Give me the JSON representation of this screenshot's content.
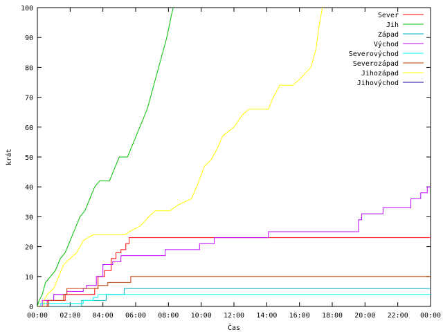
{
  "chart_data": {
    "type": "line",
    "title": "",
    "xlabel": "Čas",
    "ylabel": "krát",
    "x_unit": "hours",
    "xlim": [
      0,
      24
    ],
    "ylim": [
      0,
      100
    ],
    "x_tick_values": [
      0,
      2,
      4,
      6,
      8,
      10,
      12,
      14,
      16,
      18,
      20,
      22,
      24
    ],
    "x_tick_labels": [
      "00:00",
      "02:00",
      "04:00",
      "06:00",
      "08:00",
      "10:00",
      "12:00",
      "14:00",
      "16:00",
      "18:00",
      "20:00",
      "22:00",
      "00:00"
    ],
    "y_tick_values": [
      0,
      10,
      20,
      30,
      40,
      50,
      60,
      70,
      80,
      90,
      100
    ],
    "y_tick_labels": [
      "0",
      "10",
      "20",
      "30",
      "40",
      "50",
      "60",
      "70",
      "80",
      "90",
      "100"
    ],
    "grid": false,
    "legend_position": "top-right",
    "series": [
      {
        "name": "Sever",
        "color": "#ff0000",
        "points": [
          [
            0.6,
            0
          ],
          [
            0.6,
            2
          ],
          [
            1.7,
            2
          ],
          [
            1.7,
            4
          ],
          [
            3.5,
            4
          ],
          [
            3.5,
            6
          ],
          [
            3.7,
            6
          ],
          [
            3.7,
            10
          ],
          [
            4.1,
            10
          ],
          [
            4.1,
            12
          ],
          [
            4.5,
            12
          ],
          [
            4.5,
            16
          ],
          [
            4.8,
            16
          ],
          [
            4.8,
            18
          ],
          [
            5.1,
            18
          ],
          [
            5.1,
            19
          ],
          [
            5.4,
            19
          ],
          [
            5.4,
            21
          ],
          [
            5.6,
            21
          ],
          [
            5.6,
            23
          ],
          [
            24,
            23
          ]
        ]
      },
      {
        "name": "Jih",
        "color": "#00c000",
        "points": [
          [
            0,
            0
          ],
          [
            0.1,
            2
          ],
          [
            0.3,
            4
          ],
          [
            0.5,
            8
          ],
          [
            0.8,
            10
          ],
          [
            1.1,
            12
          ],
          [
            1.4,
            16
          ],
          [
            1.7,
            18
          ],
          [
            2,
            22
          ],
          [
            2.3,
            26
          ],
          [
            2.6,
            30
          ],
          [
            2.9,
            32
          ],
          [
            3.2,
            36
          ],
          [
            3.5,
            40
          ],
          [
            3.8,
            42
          ],
          [
            4.4,
            42
          ],
          [
            4.7,
            46
          ],
          [
            5,
            50
          ],
          [
            5.5,
            50
          ],
          [
            5.8,
            54
          ],
          [
            6.1,
            58
          ],
          [
            6.4,
            62
          ],
          [
            6.7,
            66
          ],
          [
            7,
            72
          ],
          [
            7.3,
            78
          ],
          [
            7.6,
            84
          ],
          [
            7.9,
            90
          ],
          [
            8.2,
            98
          ],
          [
            8.3,
            100
          ]
        ]
      },
      {
        "name": "Západ",
        "color": "#00b0c0",
        "points": [
          [
            0,
            0
          ],
          [
            2.7,
            0
          ],
          [
            2.7,
            2
          ],
          [
            4.2,
            2
          ],
          [
            4.2,
            4
          ],
          [
            5.3,
            4
          ],
          [
            5.3,
            6
          ],
          [
            24,
            6
          ]
        ]
      },
      {
        "name": "Východ",
        "color": "#c000ff",
        "points": [
          [
            0.3,
            0
          ],
          [
            0.3,
            2
          ],
          [
            1.0,
            2
          ],
          [
            1.0,
            4
          ],
          [
            1.8,
            4
          ],
          [
            1.8,
            5
          ],
          [
            2.8,
            5
          ],
          [
            2.8,
            6
          ],
          [
            3.0,
            6
          ],
          [
            3.0,
            7
          ],
          [
            3.6,
            7
          ],
          [
            3.6,
            10
          ],
          [
            4.0,
            10
          ],
          [
            4.0,
            14
          ],
          [
            4.6,
            14
          ],
          [
            4.6,
            15
          ],
          [
            5.1,
            15
          ],
          [
            5.1,
            17
          ],
          [
            5.5,
            17
          ],
          [
            5.5,
            17
          ],
          [
            7.8,
            17
          ],
          [
            7.8,
            19
          ],
          [
            9.9,
            19
          ],
          [
            9.9,
            21
          ],
          [
            10.8,
            21
          ],
          [
            10.8,
            23
          ],
          [
            14.1,
            23
          ],
          [
            14.1,
            25
          ],
          [
            19.6,
            25
          ],
          [
            19.6,
            29
          ],
          [
            19.8,
            29
          ],
          [
            19.8,
            31
          ],
          [
            21.1,
            31
          ],
          [
            21.1,
            33
          ],
          [
            22.8,
            33
          ],
          [
            22.8,
            36
          ],
          [
            23.4,
            36
          ],
          [
            23.4,
            38
          ],
          [
            23.8,
            38
          ],
          [
            23.8,
            40
          ],
          [
            24,
            40
          ]
        ]
      },
      {
        "name": "Severovýchod",
        "color": "#00ffff",
        "points": [
          [
            0.2,
            0
          ],
          [
            0.2,
            1
          ],
          [
            2.8,
            1
          ],
          [
            2.8,
            2
          ],
          [
            3.4,
            2
          ],
          [
            3.4,
            3
          ],
          [
            3.7,
            3
          ],
          [
            3.7,
            4
          ],
          [
            24,
            4
          ]
        ]
      },
      {
        "name": "Severozápad",
        "color": "#c04000",
        "points": [
          [
            0,
            0
          ],
          [
            0.7,
            0
          ],
          [
            0.7,
            2
          ],
          [
            1.6,
            2
          ],
          [
            1.6,
            4
          ],
          [
            1.8,
            4
          ],
          [
            1.8,
            6
          ],
          [
            3.1,
            6
          ],
          [
            3.1,
            6
          ],
          [
            3.7,
            6
          ],
          [
            3.7,
            7
          ],
          [
            4.3,
            7
          ],
          [
            4.3,
            8
          ],
          [
            5.7,
            8
          ],
          [
            5.7,
            10
          ],
          [
            24,
            10
          ]
        ]
      },
      {
        "name": "Jihozápad",
        "color": "#ffff00",
        "points": [
          [
            0.4,
            0
          ],
          [
            0.4,
            2
          ],
          [
            0.6,
            4
          ],
          [
            1.0,
            6
          ],
          [
            1.3,
            10
          ],
          [
            1.6,
            14
          ],
          [
            2.0,
            16
          ],
          [
            2.4,
            18
          ],
          [
            2.8,
            22
          ],
          [
            3.4,
            24
          ],
          [
            5.4,
            24
          ],
          [
            5.6,
            25
          ],
          [
            6.3,
            27
          ],
          [
            6.8,
            30
          ],
          [
            7.2,
            32
          ],
          [
            8.1,
            32
          ],
          [
            8.6,
            34
          ],
          [
            9.4,
            36
          ],
          [
            9.8,
            41
          ],
          [
            10.2,
            47
          ],
          [
            10.6,
            49
          ],
          [
            11.0,
            53
          ],
          [
            11.3,
            57
          ],
          [
            12.0,
            60
          ],
          [
            12.5,
            64
          ],
          [
            12.9,
            66
          ],
          [
            14.1,
            66
          ],
          [
            14.4,
            70
          ],
          [
            14.8,
            74
          ],
          [
            15.6,
            74
          ],
          [
            16.0,
            76
          ],
          [
            16.7,
            80
          ],
          [
            17.0,
            86
          ],
          [
            17.2,
            94
          ],
          [
            17.4,
            100
          ]
        ]
      },
      {
        "name": "Jihovýchod",
        "color": "#2000a0",
        "points": []
      }
    ]
  }
}
